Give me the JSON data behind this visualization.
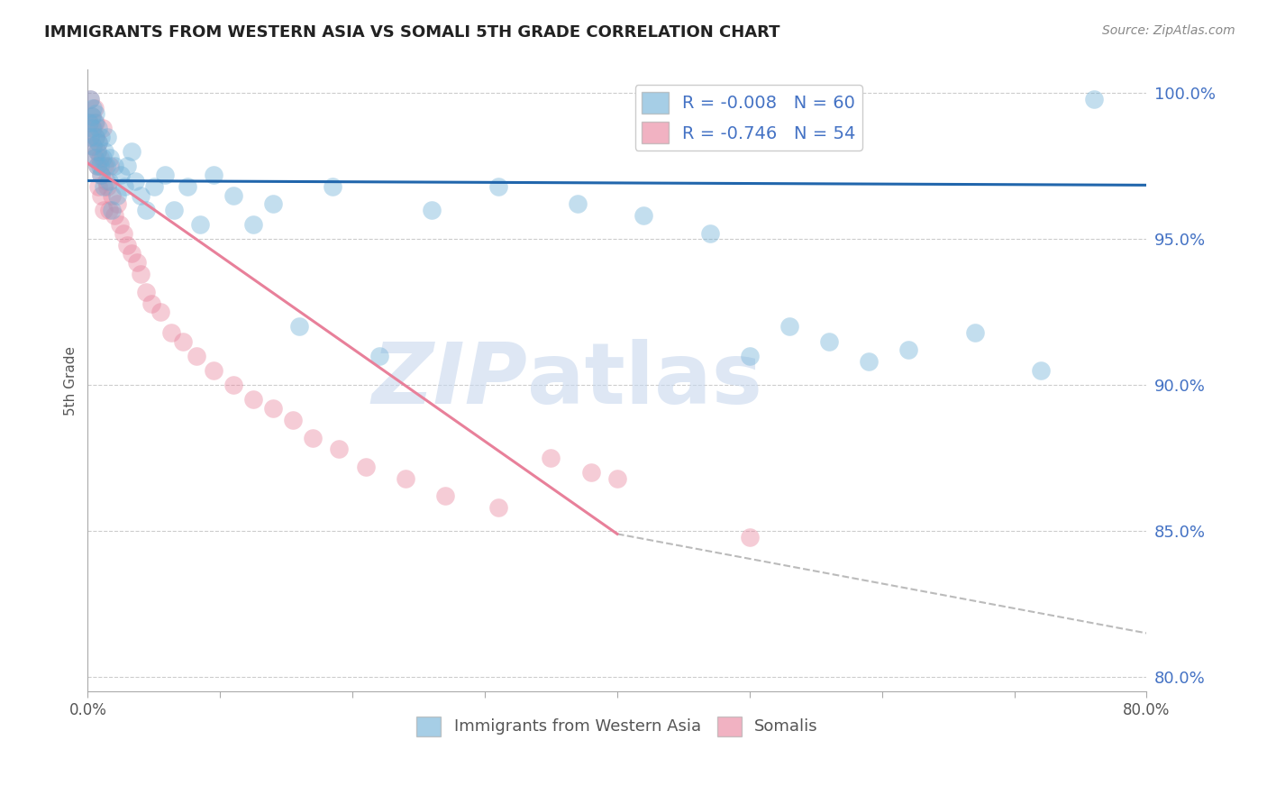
{
  "title": "IMMIGRANTS FROM WESTERN ASIA VS SOMALI 5TH GRADE CORRELATION CHART",
  "source": "Source: ZipAtlas.com",
  "ylabel": "5th Grade",
  "xlim": [
    0.0,
    0.8
  ],
  "ylim": [
    0.795,
    1.008
  ],
  "yticks": [
    0.8,
    0.85,
    0.9,
    0.95,
    1.0
  ],
  "ytick_labels": [
    "80.0%",
    "85.0%",
    "90.0%",
    "95.0%",
    "100.0%"
  ],
  "xticks": [
    0.0,
    0.1,
    0.2,
    0.3,
    0.4,
    0.5,
    0.6,
    0.7,
    0.8
  ],
  "xtick_labels": [
    "0.0%",
    "",
    "",
    "",
    "",
    "",
    "",
    "",
    "80.0%"
  ],
  "legend_entries": [
    {
      "color": "#aec6e8",
      "R": "-0.008",
      "N": "60",
      "label": "Immigrants from Western Asia"
    },
    {
      "color": "#f4b8c8",
      "R": "-0.746",
      "N": "54",
      "label": "Somalis"
    }
  ],
  "blue_scatter_x": [
    0.001,
    0.002,
    0.002,
    0.003,
    0.003,
    0.004,
    0.004,
    0.005,
    0.005,
    0.006,
    0.006,
    0.007,
    0.007,
    0.008,
    0.008,
    0.009,
    0.01,
    0.01,
    0.011,
    0.012,
    0.013,
    0.014,
    0.015,
    0.016,
    0.017,
    0.018,
    0.02,
    0.022,
    0.025,
    0.028,
    0.03,
    0.033,
    0.036,
    0.04,
    0.044,
    0.05,
    0.058,
    0.065,
    0.075,
    0.085,
    0.095,
    0.11,
    0.125,
    0.14,
    0.16,
    0.185,
    0.22,
    0.26,
    0.31,
    0.37,
    0.42,
    0.47,
    0.5,
    0.53,
    0.56,
    0.59,
    0.62,
    0.67,
    0.72,
    0.76
  ],
  "blue_scatter_y": [
    0.99,
    0.985,
    0.998,
    0.992,
    0.988,
    0.982,
    0.995,
    0.978,
    0.99,
    0.985,
    0.993,
    0.98,
    0.975,
    0.988,
    0.983,
    0.975,
    0.985,
    0.972,
    0.978,
    0.968,
    0.98,
    0.975,
    0.985,
    0.97,
    0.978,
    0.96,
    0.975,
    0.965,
    0.972,
    0.968,
    0.975,
    0.98,
    0.97,
    0.965,
    0.96,
    0.968,
    0.972,
    0.96,
    0.968,
    0.955,
    0.972,
    0.965,
    0.955,
    0.962,
    0.92,
    0.968,
    0.91,
    0.96,
    0.968,
    0.962,
    0.958,
    0.952,
    0.91,
    0.92,
    0.915,
    0.908,
    0.912,
    0.918,
    0.905,
    0.998
  ],
  "pink_scatter_x": [
    0.001,
    0.002,
    0.002,
    0.003,
    0.004,
    0.004,
    0.005,
    0.005,
    0.006,
    0.006,
    0.007,
    0.007,
    0.008,
    0.008,
    0.009,
    0.01,
    0.01,
    0.011,
    0.012,
    0.013,
    0.014,
    0.015,
    0.016,
    0.017,
    0.018,
    0.02,
    0.022,
    0.024,
    0.027,
    0.03,
    0.033,
    0.037,
    0.04,
    0.044,
    0.048,
    0.055,
    0.063,
    0.072,
    0.082,
    0.095,
    0.11,
    0.125,
    0.14,
    0.155,
    0.17,
    0.19,
    0.21,
    0.24,
    0.27,
    0.31,
    0.35,
    0.38,
    0.4,
    0.5
  ],
  "pink_scatter_y": [
    0.99,
    0.998,
    0.985,
    0.992,
    0.988,
    0.982,
    0.978,
    0.995,
    0.99,
    0.985,
    0.98,
    0.975,
    0.968,
    0.983,
    0.978,
    0.972,
    0.965,
    0.988,
    0.96,
    0.975,
    0.97,
    0.968,
    0.96,
    0.975,
    0.965,
    0.958,
    0.962,
    0.955,
    0.952,
    0.948,
    0.945,
    0.942,
    0.938,
    0.932,
    0.928,
    0.925,
    0.918,
    0.915,
    0.91,
    0.905,
    0.9,
    0.895,
    0.892,
    0.888,
    0.882,
    0.878,
    0.872,
    0.868,
    0.862,
    0.858,
    0.875,
    0.87,
    0.868,
    0.848
  ],
  "blue_line": {
    "x0": 0.0,
    "x1": 0.8,
    "y0": 0.97,
    "y1": 0.9685
  },
  "pink_line": {
    "x0": 0.0,
    "x1": 0.4,
    "y0": 0.976,
    "y1": 0.849
  },
  "pink_line_dashed": {
    "x0": 0.4,
    "x1": 0.8,
    "y0": 0.849,
    "y1": 0.815
  },
  "blue_color": "#6baed6",
  "pink_color": "#e8809a",
  "blue_line_color": "#2166ac",
  "pink_line_color": "#e8809a",
  "watermark_zip": "ZIP",
  "watermark_atlas": "atlas",
  "background_color": "#ffffff",
  "grid_color": "#cccccc"
}
